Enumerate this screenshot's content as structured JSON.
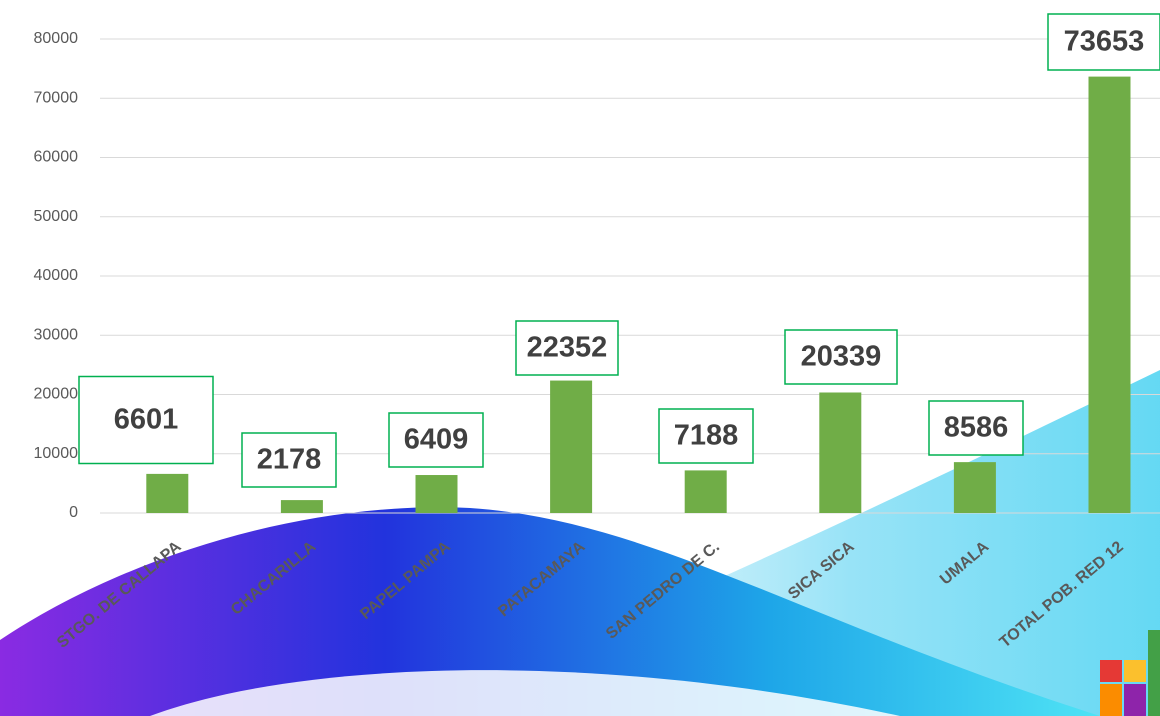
{
  "chart_data": {
    "type": "bar",
    "categories": [
      "STGO. DE CALLAPA",
      "CHACARILLA",
      "PAPEL PAMPA",
      "PATACAMAYA",
      "SAN PEDRO DE C.",
      "SICA SICA",
      "UMALA",
      "TOTAL POB. RED 12"
    ],
    "values": [
      6601,
      2178,
      6409,
      22352,
      7188,
      20339,
      8586,
      73653
    ],
    "color": "#70ad47",
    "ylim": [
      0,
      80000
    ],
    "yticks": [
      0,
      10000,
      20000,
      30000,
      40000,
      50000,
      60000,
      70000,
      80000
    ],
    "grid": true
  }
}
